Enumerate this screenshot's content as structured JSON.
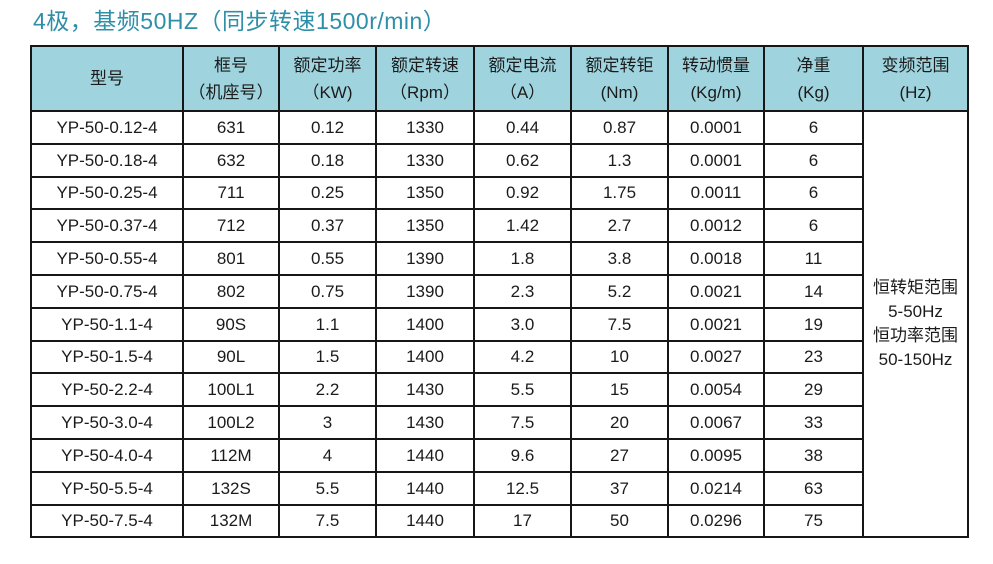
{
  "page": {
    "title": "4极，基频50HZ（同步转速1500r/min）"
  },
  "colors": {
    "title_text": "#2E8FA8",
    "header_bg": "#9FD4DF",
    "border": "#161616",
    "cell_bg": "#FFFFFF"
  },
  "table": {
    "headers": [
      {
        "line1": "型号",
        "line2": ""
      },
      {
        "line1": "框号",
        "line2": "（机座号）"
      },
      {
        "line1": "额定功率",
        "line2": "（KW)"
      },
      {
        "line1": "额定转速",
        "line2": "（Rpm）"
      },
      {
        "line1": "额定电流",
        "line2": "（A）"
      },
      {
        "line1": "额定转钜",
        "line2": "(Nm)"
      },
      {
        "line1": "转动惯量",
        "line2": "(Kg/m)"
      },
      {
        "line1": "净重",
        "line2": "(Kg)"
      },
      {
        "line1": "变频范围",
        "line2": "(Hz)"
      }
    ],
    "rows": [
      [
        "YP-50-0.12-4",
        "631",
        "0.12",
        "1330",
        "0.44",
        "0.87",
        "0.0001",
        "6"
      ],
      [
        "YP-50-0.18-4",
        "632",
        "0.18",
        "1330",
        "0.62",
        "1.3",
        "0.0001",
        "6"
      ],
      [
        "YP-50-0.25-4",
        "711",
        "0.25",
        "1350",
        "0.92",
        "1.75",
        "0.0011",
        "6"
      ],
      [
        "YP-50-0.37-4",
        "712",
        "0.37",
        "1350",
        "1.42",
        "2.7",
        "0.0012",
        "6"
      ],
      [
        "YP-50-0.55-4",
        "801",
        "0.55",
        "1390",
        "1.8",
        "3.8",
        "0.0018",
        "11"
      ],
      [
        "YP-50-0.75-4",
        "802",
        "0.75",
        "1390",
        "2.3",
        "5.2",
        "0.0021",
        "14"
      ],
      [
        "YP-50-1.1-4",
        "90S",
        "1.1",
        "1400",
        "3.0",
        "7.5",
        "0.0021",
        "19"
      ],
      [
        "YP-50-1.5-4",
        "90L",
        "1.5",
        "1400",
        "4.2",
        "10",
        "0.0027",
        "23"
      ],
      [
        "YP-50-2.2-4",
        "100L1",
        "2.2",
        "1430",
        "5.5",
        "15",
        "0.0054",
        "29"
      ],
      [
        "YP-50-3.0-4",
        "100L2",
        "3",
        "1430",
        "7.5",
        "20",
        "0.0067",
        "33"
      ],
      [
        "YP-50-4.0-4",
        "112M",
        "4",
        "1440",
        "9.6",
        "27",
        "0.0095",
        "38"
      ],
      [
        "YP-50-5.5-4",
        "132S",
        "5.5",
        "1440",
        "12.5",
        "37",
        "0.0214",
        "63"
      ],
      [
        "YP-50-7.5-4",
        "132M",
        "7.5",
        "1440",
        "17",
        "50",
        "0.0296",
        "75"
      ]
    ],
    "frequency_note_lines": [
      "恒转矩范围",
      "5-50Hz",
      "恒功率范围",
      "50-150Hz"
    ]
  }
}
